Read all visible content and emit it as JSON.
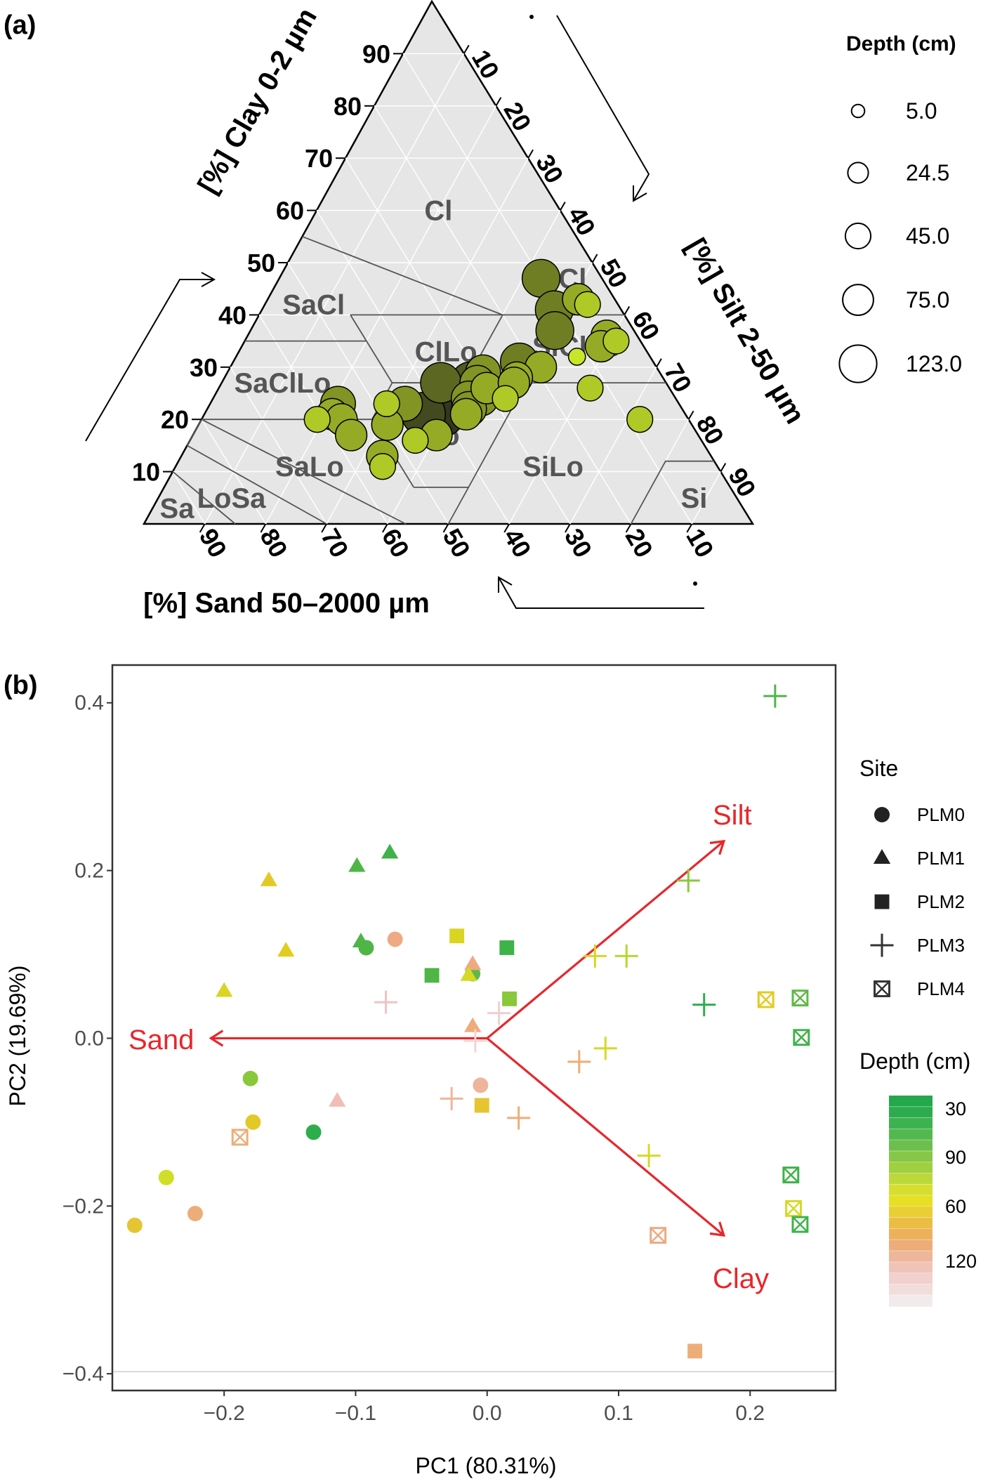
{
  "panel_a": {
    "label": "(a)",
    "axis_clay": "[%] Clay 0-2 µm",
    "axis_silt": "[%] Silt 2-50 µm",
    "axis_sand": "[%] Sand 50–2000 µm",
    "ticks_clay": [
      "10",
      "20",
      "30",
      "40",
      "50",
      "60",
      "70",
      "80",
      "90"
    ],
    "ticks_silt": [
      "10",
      "20",
      "30",
      "40",
      "50",
      "60",
      "70",
      "80",
      "90"
    ],
    "ticks_sand": [
      "90",
      "80",
      "70",
      "60",
      "50",
      "40",
      "30",
      "20",
      "10"
    ],
    "regions": [
      "Cl",
      "SiCl",
      "SaCl",
      "ClLo",
      "SiClLo",
      "SaClLo",
      "Lo",
      "SiLo",
      "SaLo",
      "LoSa",
      "Sa",
      "Si"
    ],
    "legend": {
      "title": "Depth (cm)",
      "values": [
        "5.0",
        "24.5",
        "45.0",
        "75.0",
        "123.0"
      ]
    }
  },
  "panel_b": {
    "label": "(b)",
    "xlabel": "PC1 (80.31%)",
    "ylabel": "PC2 (19.69%)",
    "xticks": [
      "−0.2",
      "−0.1",
      "0.0",
      "0.1",
      "0.2"
    ],
    "yticks": [
      "0.4",
      "0.2",
      "0.0",
      "−0.2",
      "−0.4"
    ],
    "legend_site": {
      "title": "Site",
      "items": [
        "PLM0",
        "PLM1",
        "PLM2",
        "PLM3",
        "PLM4"
      ]
    },
    "legend_depth": {
      "title": "Depth (cm)",
      "labels": [
        "30",
        "90",
        "60",
        "120"
      ]
    },
    "vectors": [
      "Sand",
      "Silt",
      "Clay"
    ]
  },
  "chart_data": [
    {
      "type": "scatter",
      "subtype": "ternary",
      "axes": [
        "Clay",
        "Silt",
        "Sand"
      ],
      "size_variable": "Depth (cm)",
      "points": [
        {
          "clay": 47,
          "silt": 43,
          "sand": 10,
          "depth": 75
        },
        {
          "clay": 41,
          "silt": 48,
          "sand": 11,
          "depth": 75
        },
        {
          "clay": 37,
          "silt": 50,
          "sand": 13,
          "depth": 75
        },
        {
          "clay": 31,
          "silt": 47,
          "sand": 22,
          "depth": 75
        },
        {
          "clay": 29,
          "silt": 42,
          "sand": 29,
          "depth": 60
        },
        {
          "clay": 27,
          "silt": 41,
          "sand": 32,
          "depth": 100
        },
        {
          "clay": 27,
          "silt": 42,
          "sand": 31,
          "depth": 60
        },
        {
          "clay": 25,
          "silt": 43,
          "sand": 32,
          "depth": 80
        },
        {
          "clay": 24,
          "silt": 44,
          "sand": 32,
          "depth": 60
        },
        {
          "clay": 24,
          "silt": 42,
          "sand": 34,
          "depth": 60
        },
        {
          "clay": 26,
          "silt": 44,
          "sand": 30,
          "depth": 45
        },
        {
          "clay": 22,
          "silt": 43,
          "sand": 35,
          "depth": 60
        },
        {
          "clay": 21,
          "silt": 43,
          "sand": 36,
          "depth": 45
        },
        {
          "clay": 27,
          "silt": 36,
          "sand": 37,
          "depth": 90
        },
        {
          "clay": 21,
          "silt": 39,
          "sand": 40,
          "depth": 123
        },
        {
          "clay": 21,
          "silt": 36,
          "sand": 43,
          "depth": 110
        },
        {
          "clay": 17,
          "silt": 40,
          "sand": 43,
          "depth": 45
        },
        {
          "clay": 16,
          "silt": 37,
          "sand": 47,
          "depth": 24.5
        },
        {
          "clay": 23,
          "silt": 32,
          "sand": 45,
          "depth": 60
        },
        {
          "clay": 19,
          "silt": 31,
          "sand": 50,
          "depth": 45
        },
        {
          "clay": 23,
          "silt": 21,
          "sand": 56,
          "depth": 60
        },
        {
          "clay": 21,
          "silt": 21,
          "sand": 58,
          "depth": 45
        },
        {
          "clay": 20,
          "silt": 23,
          "sand": 57,
          "depth": 45
        },
        {
          "clay": 20,
          "silt": 19,
          "sand": 61,
          "depth": 24.5
        },
        {
          "clay": 17,
          "silt": 26,
          "sand": 57,
          "depth": 45
        },
        {
          "clay": 13,
          "silt": 33,
          "sand": 54,
          "depth": 45
        },
        {
          "clay": 11,
          "silt": 34,
          "sand": 55,
          "depth": 24.5
        },
        {
          "clay": 23,
          "silt": 29,
          "sand": 48,
          "depth": 24.5
        },
        {
          "clay": 43,
          "silt": 51,
          "sand": 6,
          "depth": 45
        },
        {
          "clay": 42,
          "silt": 53,
          "sand": 5,
          "depth": 24.5
        },
        {
          "clay": 36,
          "silt": 59,
          "sand": 5,
          "depth": 45
        },
        {
          "clay": 35,
          "silt": 61,
          "sand": 4,
          "depth": 24.5
        },
        {
          "clay": 34,
          "silt": 59,
          "sand": 7,
          "depth": 45
        },
        {
          "clay": 32,
          "silt": 56,
          "sand": 12,
          "depth": 5
        },
        {
          "clay": 30,
          "silt": 51,
          "sand": 19,
          "depth": 45
        },
        {
          "clay": 26,
          "silt": 61,
          "sand": 13,
          "depth": 24.5
        },
        {
          "clay": 20,
          "silt": 72,
          "sand": 8,
          "depth": 24.5
        },
        {
          "clay": 28,
          "silt": 48,
          "sand": 24,
          "depth": 45
        },
        {
          "clay": 27,
          "silt": 48,
          "sand": 25,
          "depth": 45
        },
        {
          "clay": 24,
          "silt": 48,
          "sand": 28,
          "depth": 24.5
        }
      ]
    },
    {
      "type": "scatter",
      "subtype": "pca-biplot",
      "xlabel": "PC1 (80.31%)",
      "ylabel": "PC2 (19.69%)",
      "xlim": [
        -0.285,
        0.265
      ],
      "ylim": [
        -0.42,
        0.445
      ],
      "vectors": [
        {
          "name": "Sand",
          "x": -0.21,
          "y": 0.0
        },
        {
          "name": "Silt",
          "x": 0.18,
          "y": 0.235
        },
        {
          "name": "Clay",
          "x": 0.18,
          "y": -0.235
        }
      ],
      "series": [
        {
          "name": "PLM0",
          "shape": "circle",
          "points": [
            {
              "x": -0.092,
              "y": 0.108,
              "depth": 40
            },
            {
              "x": -0.07,
              "y": 0.118,
              "depth": 150
            },
            {
              "x": -0.011,
              "y": 0.077,
              "depth": 45
            },
            {
              "x": -0.18,
              "y": -0.048,
              "depth": 50
            },
            {
              "x": -0.132,
              "y": -0.112,
              "depth": 30
            },
            {
              "x": -0.178,
              "y": -0.1,
              "depth": 75
            },
            {
              "x": -0.005,
              "y": -0.056,
              "depth": 160
            },
            {
              "x": -0.244,
              "y": -0.166,
              "depth": 60
            },
            {
              "x": -0.222,
              "y": -0.209,
              "depth": 140
            },
            {
              "x": -0.268,
              "y": -0.223,
              "depth": 80
            }
          ]
        },
        {
          "name": "PLM1",
          "shape": "triangle",
          "points": [
            {
              "x": -0.099,
              "y": 0.205,
              "depth": 40
            },
            {
              "x": -0.074,
              "y": 0.221,
              "depth": 35
            },
            {
              "x": -0.166,
              "y": 0.188,
              "depth": 75
            },
            {
              "x": -0.153,
              "y": 0.104,
              "depth": 70
            },
            {
              "x": -0.096,
              "y": 0.115,
              "depth": 40
            },
            {
              "x": -0.011,
              "y": 0.088,
              "depth": 150
            },
            {
              "x": -0.014,
              "y": 0.075,
              "depth": 62
            },
            {
              "x": -0.2,
              "y": 0.056,
              "depth": 65
            },
            {
              "x": -0.011,
              "y": 0.014,
              "depth": 145
            },
            {
              "x": -0.114,
              "y": -0.075,
              "depth": 170
            }
          ]
        },
        {
          "name": "PLM2",
          "shape": "square",
          "points": [
            {
              "x": -0.023,
              "y": 0.122,
              "depth": 65
            },
            {
              "x": 0.015,
              "y": 0.108,
              "depth": 35
            },
            {
              "x": -0.042,
              "y": 0.075,
              "depth": 40
            },
            {
              "x": 0.017,
              "y": 0.047,
              "depth": 50
            },
            {
              "x": -0.004,
              "y": -0.08,
              "depth": 80
            },
            {
              "x": 0.158,
              "y": -0.373,
              "depth": 140
            }
          ]
        },
        {
          "name": "PLM3",
          "shape": "plus",
          "points": [
            {
              "x": 0.219,
              "y": 0.408,
              "depth": 40
            },
            {
              "x": 0.153,
              "y": 0.188,
              "depth": 50
            },
            {
              "x": 0.082,
              "y": 0.098,
              "depth": 65
            },
            {
              "x": 0.106,
              "y": 0.098,
              "depth": 55
            },
            {
              "x": 0.165,
              "y": 0.04,
              "depth": 30
            },
            {
              "x": 0.009,
              "y": 0.03,
              "depth": 185
            },
            {
              "x": -0.077,
              "y": 0.043,
              "depth": 175
            },
            {
              "x": -0.009,
              "y": -0.003,
              "depth": 190
            },
            {
              "x": 0.09,
              "y": -0.012,
              "depth": 62
            },
            {
              "x": 0.07,
              "y": -0.028,
              "depth": 140
            },
            {
              "x": -0.027,
              "y": -0.072,
              "depth": 160
            },
            {
              "x": 0.024,
              "y": -0.095,
              "depth": 140
            },
            {
              "x": 0.123,
              "y": -0.14,
              "depth": 62
            }
          ]
        },
        {
          "name": "PLM4",
          "shape": "square-x",
          "points": [
            {
              "x": 0.212,
              "y": 0.046,
              "depth": 72
            },
            {
              "x": 0.238,
              "y": 0.048,
              "depth": 45
            },
            {
              "x": 0.239,
              "y": 0.001,
              "depth": 35
            },
            {
              "x": -0.188,
              "y": -0.118,
              "depth": 140
            },
            {
              "x": 0.231,
              "y": -0.163,
              "depth": 35
            },
            {
              "x": 0.233,
              "y": -0.203,
              "depth": 62
            },
            {
              "x": 0.238,
              "y": -0.222,
              "depth": 35
            },
            {
              "x": 0.13,
              "y": -0.235,
              "depth": 150
            }
          ]
        }
      ],
      "color_scale": {
        "title": "Depth (cm)",
        "labels": [
          "30",
          "90",
          "60",
          "120"
        ]
      }
    }
  ]
}
